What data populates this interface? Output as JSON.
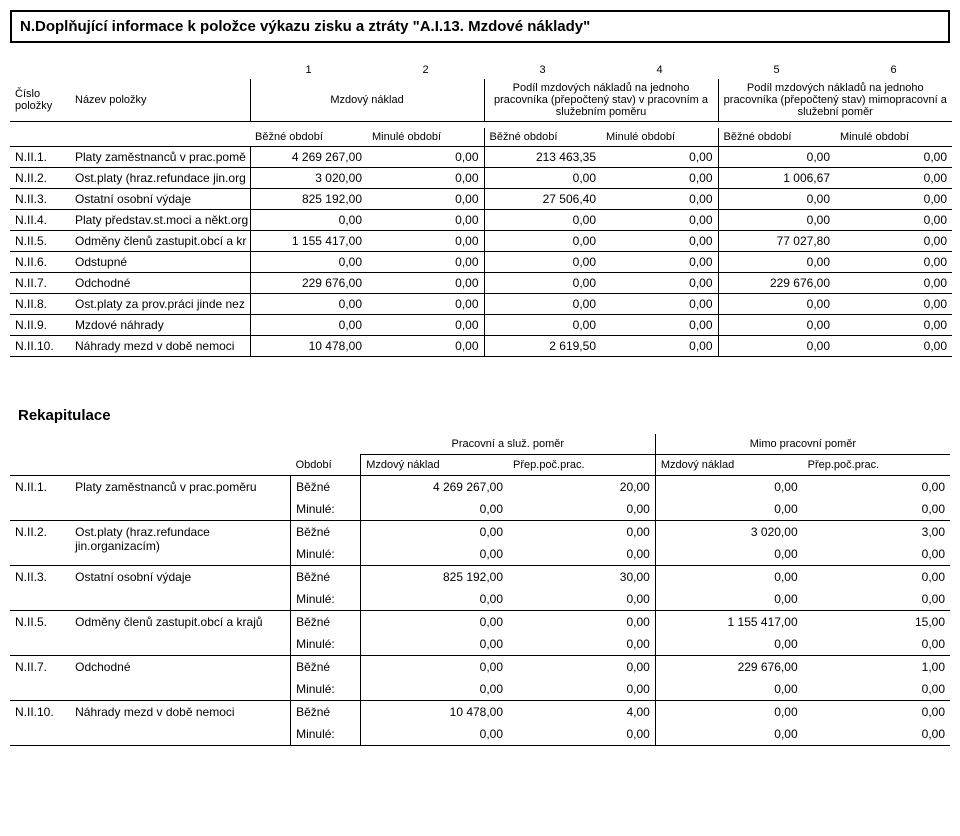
{
  "title": "N.Doplňující informace k položce výkazu zisku a ztráty \"A.I.13. Mzdové náklady\"",
  "table1": {
    "colnums": [
      "1",
      "2",
      "3",
      "4",
      "5",
      "6"
    ],
    "rowhead1": "Číslo položky",
    "rowhead2": "Název položky",
    "group1": "Mzdový náklad",
    "group2": "Podíl mzdových nákladů na jednoho pracovníka (přepočtený stav) v pracovním a služebním poměru",
    "group3": "Podíl mzdových nákladů na jednoho pracovníka (přepočtený stav) mimopracovní a služební poměr",
    "sub1": "Běžné období",
    "sub2": "Minulé období",
    "rows": [
      {
        "c": "N.II.1.",
        "n": "Platy zaměstnanců v prac.pomě",
        "v": [
          "4 269 267,00",
          "0,00",
          "213 463,35",
          "0,00",
          "0,00",
          "0,00"
        ]
      },
      {
        "c": "N.II.2.",
        "n": "Ost.platy (hraz.refundace jin.org",
        "v": [
          "3 020,00",
          "0,00",
          "0,00",
          "0,00",
          "1 006,67",
          "0,00"
        ]
      },
      {
        "c": "N.II.3.",
        "n": "Ostatní osobní výdaje",
        "v": [
          "825 192,00",
          "0,00",
          "27 506,40",
          "0,00",
          "0,00",
          "0,00"
        ]
      },
      {
        "c": "N.II.4.",
        "n": "Platy představ.st.moci a někt.org",
        "v": [
          "0,00",
          "0,00",
          "0,00",
          "0,00",
          "0,00",
          "0,00"
        ]
      },
      {
        "c": "N.II.5.",
        "n": "Odměny členů zastupit.obcí a kr",
        "v": [
          "1 155 417,00",
          "0,00",
          "0,00",
          "0,00",
          "77 027,80",
          "0,00"
        ]
      },
      {
        "c": "N.II.6.",
        "n": "Odstupné",
        "v": [
          "0,00",
          "0,00",
          "0,00",
          "0,00",
          "0,00",
          "0,00"
        ]
      },
      {
        "c": "N.II.7.",
        "n": "Odchodné",
        "v": [
          "229 676,00",
          "0,00",
          "0,00",
          "0,00",
          "229 676,00",
          "0,00"
        ]
      },
      {
        "c": "N.II.8.",
        "n": "Ost.platy za prov.práci jinde nez",
        "v": [
          "0,00",
          "0,00",
          "0,00",
          "0,00",
          "0,00",
          "0,00"
        ]
      },
      {
        "c": "N.II.9.",
        "n": "Mzdové náhrady",
        "v": [
          "0,00",
          "0,00",
          "0,00",
          "0,00",
          "0,00",
          "0,00"
        ]
      },
      {
        "c": "N.II.10.",
        "n": "Náhrady mezd v době nemoci",
        "v": [
          "10 478,00",
          "0,00",
          "2 619,50",
          "0,00",
          "0,00",
          "0,00"
        ]
      }
    ]
  },
  "recap": {
    "title": "Rekapitulace",
    "h1": "Pracovní a služ. poměr",
    "h2": "Mimo pracovní poměr",
    "sub_period": "Období",
    "sub_mn": "Mzdový náklad",
    "sub_pp": "Přep.poč.prac.",
    "bezne": "Běžné",
    "minule": "Minulé:",
    "rows": [
      {
        "c": "N.II.1.",
        "n": "Platy zaměstnanců v prac.poměru",
        "b": [
          "4 269 267,00",
          "20,00",
          "0,00",
          "0,00"
        ],
        "m": [
          "0,00",
          "0,00",
          "0,00",
          "0,00"
        ]
      },
      {
        "c": "N.II.2.",
        "n": "Ost.platy (hraz.refundace jin.organizacím)",
        "b": [
          "0,00",
          "0,00",
          "3 020,00",
          "3,00"
        ],
        "m": [
          "0,00",
          "0,00",
          "0,00",
          "0,00"
        ]
      },
      {
        "c": "N.II.3.",
        "n": "Ostatní osobní výdaje",
        "b": [
          "825 192,00",
          "30,00",
          "0,00",
          "0,00"
        ],
        "m": [
          "0,00",
          "0,00",
          "0,00",
          "0,00"
        ]
      },
      {
        "c": "N.II.5.",
        "n": "Odměny členů zastupit.obcí a krajů",
        "b": [
          "0,00",
          "0,00",
          "1 155 417,00",
          "15,00"
        ],
        "m": [
          "0,00",
          "0,00",
          "0,00",
          "0,00"
        ]
      },
      {
        "c": "N.II.7.",
        "n": "Odchodné",
        "b": [
          "0,00",
          "0,00",
          "229 676,00",
          "1,00"
        ],
        "m": [
          "0,00",
          "0,00",
          "0,00",
          "0,00"
        ]
      },
      {
        "c": "N.II.10.",
        "n": "Náhrady mezd v době nemoci",
        "b": [
          "10 478,00",
          "4,00",
          "0,00",
          "0,00"
        ],
        "m": [
          "0,00",
          "0,00",
          "0,00",
          "0,00"
        ]
      }
    ]
  }
}
